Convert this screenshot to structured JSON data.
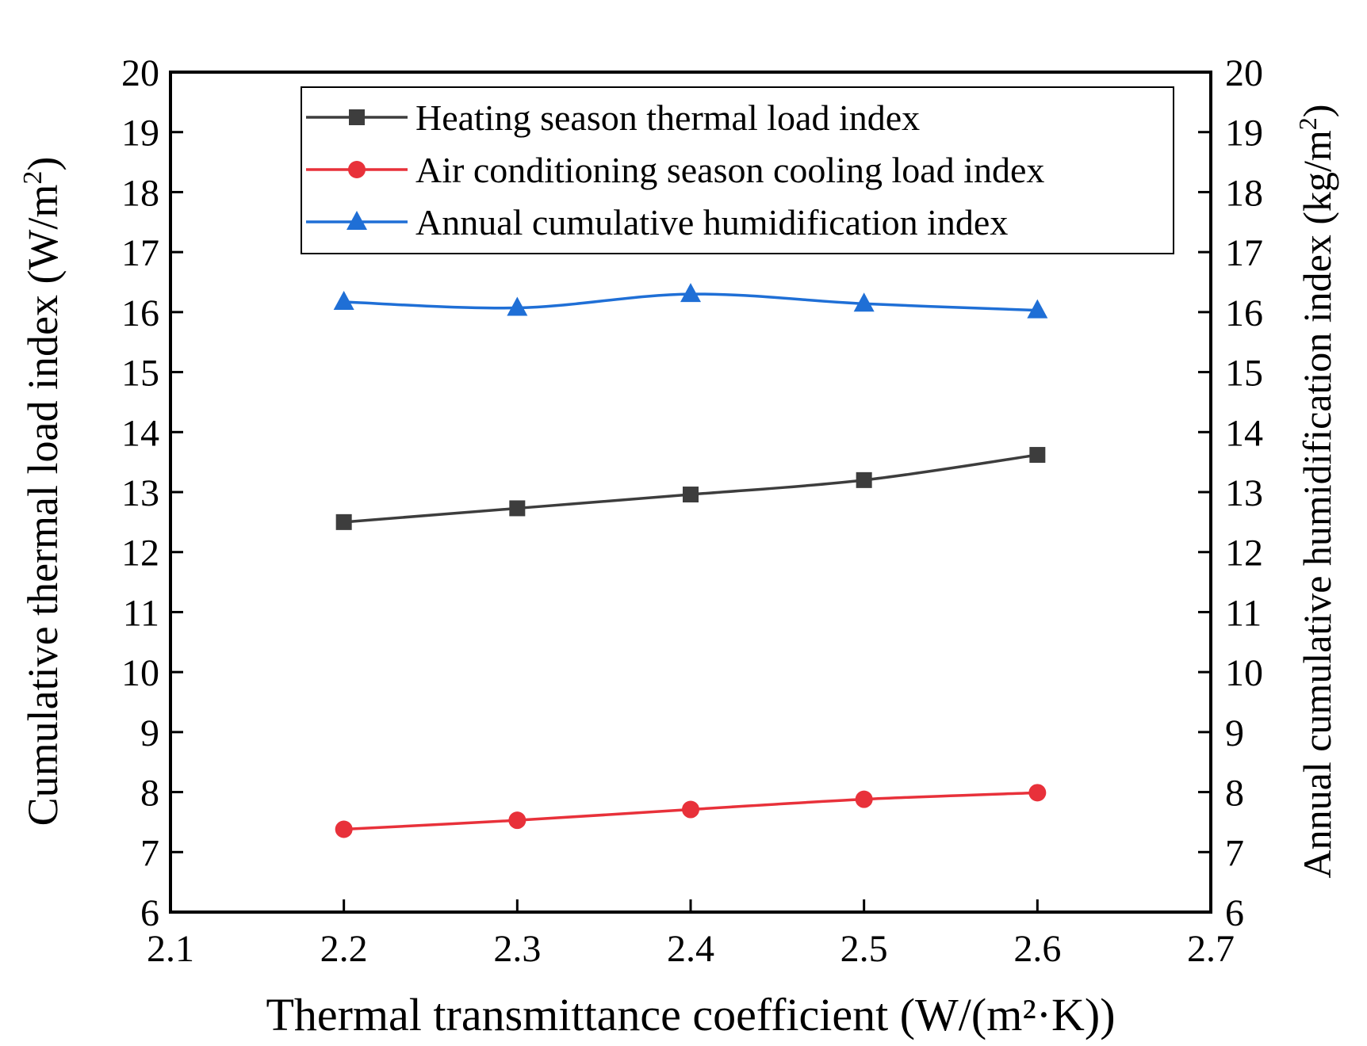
{
  "chart_data": {
    "type": "line",
    "title": "",
    "xlabel": "Thermal transmittance coefficient  (W/(m²·K))",
    "ylabel_left": "Cumulative thermal load index (W/m",
    "ylabel_left_sup": "2",
    "ylabel_left_end": ")",
    "ylabel_right": "Annual cumulative humidification index (kg/m",
    "ylabel_right_sup": "2",
    "ylabel_right_end": ")",
    "xlim": [
      2.1,
      2.7
    ],
    "ylim": [
      6,
      20
    ],
    "x_ticks": [
      "2.1",
      "2.2",
      "2.3",
      "2.4",
      "2.5",
      "2.6",
      "2.7"
    ],
    "y_ticks": [
      "6",
      "7",
      "8",
      "9",
      "10",
      "11",
      "12",
      "13",
      "14",
      "15",
      "16",
      "17",
      "18",
      "19",
      "20"
    ],
    "legend_position": "top-right",
    "x": [
      2.2,
      2.3,
      2.4,
      2.5,
      2.6
    ],
    "series": [
      {
        "name": "Heating season thermal load index",
        "color": "#3d3d3d",
        "marker": "square",
        "axis": "left",
        "values": [
          12.5,
          12.73,
          12.96,
          13.2,
          13.62
        ]
      },
      {
        "name": "Air conditioning season cooling load index",
        "color": "#e8313a",
        "marker": "circle",
        "axis": "left",
        "values": [
          7.38,
          7.53,
          7.71,
          7.88,
          7.99
        ]
      },
      {
        "name": "Annual cumulative humidification index",
        "color": "#1f6fd6",
        "marker": "triangle",
        "axis": "right",
        "values": [
          16.17,
          16.07,
          16.3,
          16.14,
          16.03
        ]
      }
    ]
  }
}
